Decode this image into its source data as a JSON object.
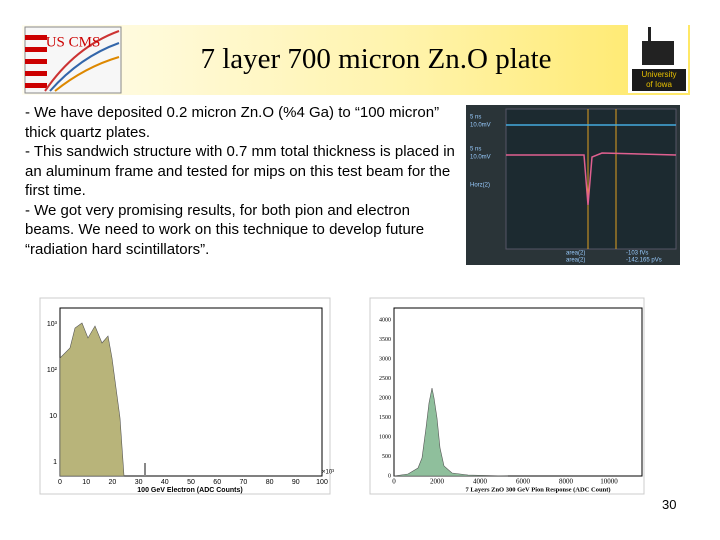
{
  "header": {
    "title": "7 layer 700 micron Zn.O plate",
    "logo_left": "US CMS",
    "logo_right": [
      "University",
      "of Iowa"
    ]
  },
  "body": {
    "paragraphs": [
      "- We have deposited 0.2 micron Zn.O (%4 Ga) to “100 micron” thick quartz plates.",
      "- This sandwich structure with 0.7 mm total thickness is placed in an aluminum frame and tested for mips on this test beam for the first time.",
      "- We got very promising results, for both pion and electron beams. We need to work on this technique to develop future “radiation hard scintillators”."
    ]
  },
  "scope": {
    "labels": [
      "5 ns",
      "10.0mV",
      "5 ns",
      "10.0mV",
      "Horz(2)",
      "area(2)",
      "area(2)",
      "-103 fVs",
      "-142.165 pVs"
    ]
  },
  "plots": [
    {
      "yticks": [
        "10³",
        "10²",
        "10",
        "1"
      ],
      "xticks": [
        "0",
        "10",
        "20",
        "30",
        "40",
        "50",
        "60",
        "70",
        "80",
        "90",
        "100"
      ],
      "x_multiplier": "×10³",
      "x_title": "100 GeV Electron (ADC Counts)"
    },
    {
      "yticks": [
        "0",
        "500",
        "1000",
        "1500",
        "2000",
        "2500",
        "3000",
        "3500",
        "4000"
      ],
      "xticks": [
        "0",
        "2000",
        "4000",
        "6000",
        "8000",
        "10000"
      ],
      "x_title": "7 Layers ZnO 300 GeV Pion Response (ADC Count)"
    }
  ],
  "page_number": "30"
}
